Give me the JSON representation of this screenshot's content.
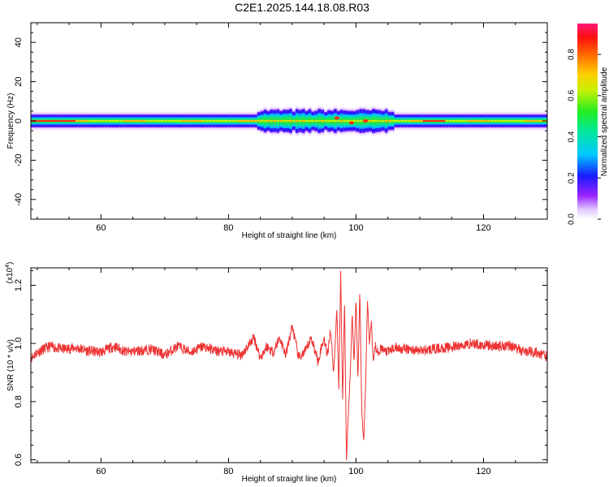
{
  "title": "C2E1.2025.144.18.08.R03",
  "chart_data": [
    {
      "type": "heatmap",
      "xlabel": "Height of straight line (km)",
      "ylabel": "Frequency (Hz)",
      "xlim": [
        49,
        130
      ],
      "ylim": [
        -50,
        50
      ],
      "xticks": [
        60,
        80,
        100,
        120
      ],
      "yticks": [
        -40,
        -20,
        0,
        20,
        40
      ],
      "xtick_labels": [
        "60",
        "80",
        "100",
        "120"
      ],
      "ytick_labels": [
        "-40",
        "-20",
        "0",
        "20",
        "40"
      ],
      "colorbar": {
        "label": "Normalized spectral amplitude",
        "range": [
          0,
          0.95
        ],
        "ticks": [
          0.0,
          0.2,
          0.4,
          0.6,
          0.8
        ],
        "tick_labels": [
          "0.0",
          "0.2",
          "0.4",
          "0.6",
          "0.8"
        ],
        "colormap": "rainbow (white-violet-blue-cyan-green-yellow-red-magenta)"
      },
      "band": {
        "description": "narrow spectral band centred at 0 Hz",
        "center_hz": 0,
        "typical_halfwidth_hz": 2.5,
        "max_halfwidth_hz": 5,
        "peak_amplitude": 0.95
      }
    },
    {
      "type": "line",
      "xlabel": "Height of straight line (km)",
      "ylabel": "SNR (10 * v/v)",
      "multiplier": "(x10",
      "multiplier_exp": "4",
      "multiplier_close": ")",
      "xlim": [
        49,
        130
      ],
      "ylim": [
        0.59,
        1.26
      ],
      "xticks": [
        60,
        80,
        100,
        120
      ],
      "yticks": [
        0.6,
        0.8,
        1.0,
        1.2
      ],
      "xtick_labels": [
        "60",
        "80",
        "100",
        "120"
      ],
      "ytick_labels": [
        "0.6",
        "0.8",
        "1.0",
        "1.2"
      ],
      "series": [
        {
          "color": "#ee3333",
          "x": [
            49,
            50,
            51,
            52,
            54,
            56,
            58,
            60,
            62,
            64,
            66,
            68,
            70,
            72,
            74,
            76,
            78,
            80,
            82,
            84,
            85,
            86,
            87,
            88,
            89,
            90,
            91,
            92,
            93,
            94,
            95,
            95.5,
            96,
            96.5,
            97,
            97.3,
            97.6,
            97.9,
            98.2,
            98.5,
            98.8,
            99.1,
            99.4,
            99.7,
            100.0,
            100.3,
            100.6,
            100.9,
            101.2,
            101.5,
            101.8,
            102.1,
            102.4,
            102.7,
            103.0,
            103.5,
            104,
            105,
            106,
            108,
            110,
            112,
            114,
            116,
            118,
            120,
            122,
            124,
            126,
            128,
            130
          ],
          "y": [
            0.95,
            0.97,
            0.98,
            0.99,
            0.98,
            0.985,
            0.975,
            0.97,
            0.99,
            0.97,
            0.975,
            0.98,
            0.96,
            0.99,
            0.97,
            0.99,
            0.975,
            0.97,
            0.96,
            1.02,
            0.95,
            0.99,
            0.97,
            1.02,
            0.96,
            1.06,
            0.95,
            0.97,
            1.02,
            0.94,
            1.02,
            0.96,
            1.05,
            0.9,
            1.12,
            0.84,
            1.25,
            0.8,
            1.15,
            0.6,
            0.76,
            0.9,
            1.1,
            0.93,
            1.16,
            0.87,
            1.19,
            0.77,
            0.66,
            0.85,
            1.15,
            1.0,
            1.08,
            0.94,
            0.99,
            0.975,
            0.98,
            0.97,
            0.985,
            0.98,
            0.975,
            0.98,
            0.985,
            0.99,
            1.0,
            0.995,
            0.99,
            0.995,
            0.975,
            0.97,
            0.955
          ]
        }
      ]
    }
  ]
}
